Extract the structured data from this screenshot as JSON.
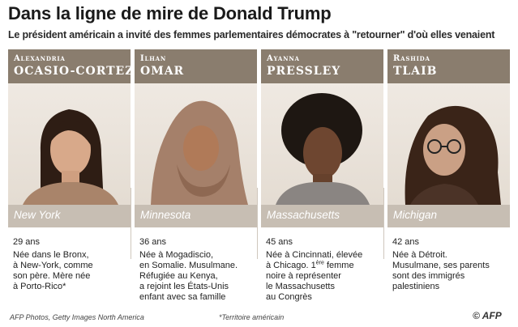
{
  "header": {
    "title": "Dans la ligne de mire de Donald Trump",
    "subtitle": "Le président américain a invité des femmes parlementaires démocrates à \"retourner\" d'où elles venaient"
  },
  "colors": {
    "name_bar": "#8a7d6e",
    "state_bar": "#c7beb3"
  },
  "people": [
    {
      "first_name": "Alexandria",
      "last_name": "OCASIO-CORTEZ",
      "state": "New York",
      "age": "29 ans",
      "bio_lines": [
        "Née dans le Bronx,",
        "à New-York, comme",
        "son père. Mère née",
        "à Porto-Rico*"
      ]
    },
    {
      "first_name": "Ilhan",
      "last_name": "OMAR",
      "state": "Minnesota",
      "age": "36 ans",
      "bio_lines": [
        "Née à Mogadiscio,",
        "en Somalie. Musulmane.",
        "Réfugiée au Kenya,",
        "a rejoint les États-Unis",
        "enfant avec sa famille"
      ]
    },
    {
      "first_name": "Ayanna",
      "last_name": "PRESSLEY",
      "state": "Massachusetts",
      "age": "45 ans",
      "bio_lines": [
        "Née à Cincinnati, élevée",
        "à Chicago. 1",
        "ère",
        " femme",
        "noire à représenter",
        "le Massachusetts",
        "au Congrès"
      ]
    },
    {
      "first_name": "Rashida",
      "last_name": "TLAIB",
      "state": "Michigan",
      "age": "42 ans",
      "bio_lines": [
        "Née à Détroit.",
        "Musulmane, ses parents",
        "sont des immigrés",
        "palestiniens"
      ]
    }
  ],
  "footer": {
    "credit": "AFP Photos, Getty Images North America",
    "note": "*Territoire américain",
    "logo": "© AFP"
  }
}
